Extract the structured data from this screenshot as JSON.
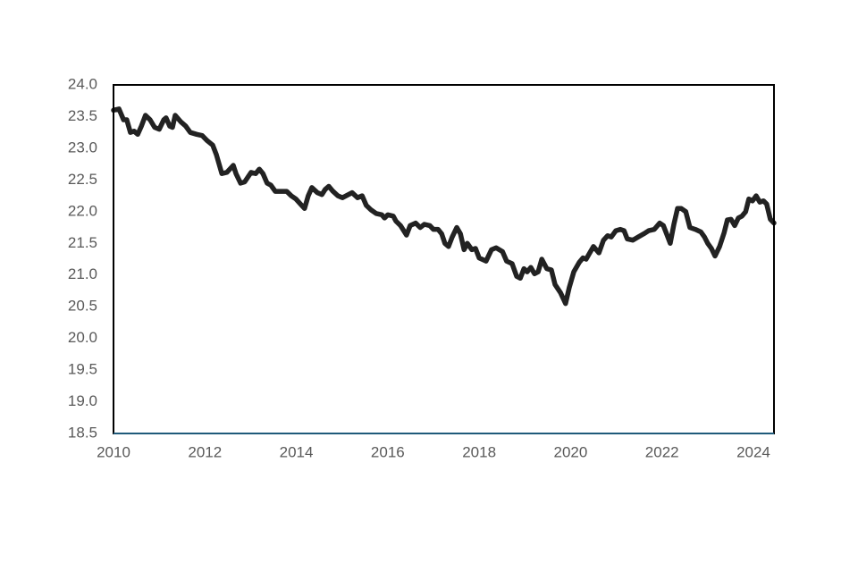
{
  "chart_data": {
    "type": "line",
    "xlim": [
      2010,
      2024.45
    ],
    "xticks": [
      2010,
      2012,
      2014,
      2016,
      2018,
      2020,
      2022,
      2024
    ],
    "ylim": [
      18.5,
      24.0
    ],
    "yticks": [
      18.5,
      {
        "value": 19,
        "label": "19.0"
      },
      19.5,
      {
        "value": 20,
        "label": "20.0"
      },
      20.5,
      {
        "value": 21,
        "label": "21.0"
      },
      21.5,
      {
        "value": 22,
        "label": "22.0"
      },
      22.5,
      {
        "value": 23,
        "label": "23.0"
      },
      23.5,
      {
        "value": 24,
        "label": "24.0"
      }
    ],
    "grid": false,
    "series": [
      {
        "color": "#222222",
        "x": [
          2010.0,
          2010.12,
          2010.22,
          2010.29,
          2010.37,
          2010.45,
          2010.53,
          2010.61,
          2010.7,
          2010.8,
          2010.9,
          2011.0,
          2011.1,
          2011.15,
          2011.23,
          2011.29,
          2011.35,
          2011.47,
          2011.58,
          2011.68,
          2011.82,
          2011.94,
          2012.05,
          2012.17,
          2012.25,
          2012.37,
          2012.48,
          2012.62,
          2012.68,
          2012.78,
          2012.87,
          2013.01,
          2013.11,
          2013.19,
          2013.27,
          2013.36,
          2013.44,
          2013.54,
          2013.7,
          2013.79,
          2013.89,
          2013.99,
          2014.09,
          2014.18,
          2014.26,
          2014.34,
          2014.46,
          2014.56,
          2014.63,
          2014.71,
          2014.79,
          2014.91,
          2015.01,
          2015.14,
          2015.22,
          2015.34,
          2015.44,
          2015.53,
          2015.63,
          2015.75,
          2015.87,
          2015.93,
          2016.0,
          2016.12,
          2016.18,
          2016.28,
          2016.41,
          2016.49,
          2016.61,
          2016.71,
          2016.8,
          2016.92,
          2017.0,
          2017.1,
          2017.18,
          2017.25,
          2017.33,
          2017.41,
          2017.51,
          2017.59,
          2017.67,
          2017.74,
          2017.84,
          2017.92,
          2018.0,
          2018.15,
          2018.27,
          2018.37,
          2018.51,
          2018.6,
          2018.72,
          2018.82,
          2018.9,
          2018.98,
          2019.05,
          2019.13,
          2019.21,
          2019.29,
          2019.37,
          2019.48,
          2019.58,
          2019.66,
          2019.78,
          2019.89,
          2019.97,
          2020.07,
          2020.19,
          2020.27,
          2020.34,
          2020.42,
          2020.5,
          2020.62,
          2020.72,
          2020.81,
          2020.89,
          2020.99,
          2021.09,
          2021.17,
          2021.24,
          2021.36,
          2021.48,
          2021.6,
          2021.71,
          2021.83,
          2021.95,
          2022.03,
          2022.1,
          2022.18,
          2022.26,
          2022.34,
          2022.42,
          2022.52,
          2022.61,
          2022.73,
          2022.85,
          2022.93,
          2023.0,
          2023.08,
          2023.16,
          2023.26,
          2023.36,
          2023.43,
          2023.51,
          2023.59,
          2023.67,
          2023.75,
          2023.83,
          2023.9,
          2023.98,
          2024.06,
          2024.14,
          2024.22,
          2024.29,
          2024.37,
          2024.45
        ],
        "values": [
          23.6,
          23.62,
          23.45,
          23.45,
          23.25,
          23.27,
          23.22,
          23.35,
          23.52,
          23.45,
          23.33,
          23.3,
          23.45,
          23.48,
          23.35,
          23.33,
          23.52,
          23.42,
          23.35,
          23.25,
          23.22,
          23.2,
          23.12,
          23.05,
          22.9,
          22.6,
          22.62,
          22.73,
          22.6,
          22.45,
          22.47,
          22.62,
          22.6,
          22.67,
          22.6,
          22.45,
          22.42,
          22.32,
          22.32,
          22.32,
          22.25,
          22.2,
          22.12,
          22.05,
          22.25,
          22.38,
          22.3,
          22.27,
          22.35,
          22.4,
          22.33,
          22.25,
          22.22,
          22.27,
          22.3,
          22.22,
          22.25,
          22.1,
          22.03,
          21.97,
          21.95,
          21.9,
          21.95,
          21.93,
          21.85,
          21.78,
          21.63,
          21.78,
          21.82,
          21.75,
          21.8,
          21.78,
          21.72,
          21.72,
          21.65,
          21.5,
          21.45,
          21.6,
          21.75,
          21.65,
          21.4,
          21.5,
          21.4,
          21.42,
          21.27,
          21.22,
          21.4,
          21.43,
          21.37,
          21.22,
          21.18,
          20.98,
          20.95,
          21.1,
          21.05,
          21.12,
          21.02,
          21.05,
          21.25,
          21.1,
          21.08,
          20.85,
          20.72,
          20.55,
          20.8,
          21.05,
          21.2,
          21.27,
          21.25,
          21.35,
          21.45,
          21.35,
          21.55,
          21.62,
          21.6,
          21.7,
          21.72,
          21.7,
          21.57,
          21.55,
          21.6,
          21.65,
          21.7,
          21.72,
          21.82,
          21.78,
          21.65,
          21.5,
          21.8,
          22.05,
          22.05,
          22.0,
          21.75,
          21.72,
          21.68,
          21.6,
          21.5,
          21.42,
          21.3,
          21.45,
          21.67,
          21.87,
          21.88,
          21.78,
          21.9,
          21.93,
          22.0,
          22.2,
          22.17,
          22.25,
          22.15,
          22.17,
          22.12,
          21.88,
          21.82
        ]
      }
    ]
  }
}
